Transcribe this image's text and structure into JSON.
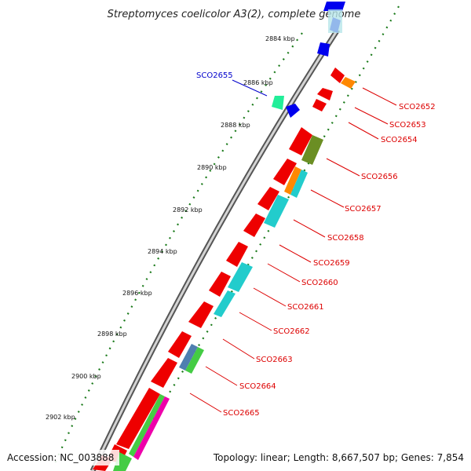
{
  "title": "Streptomyces coelicolor A3(2), complete genome",
  "footer": {
    "accession": "Accession: NC_003888",
    "topology": "Topology: linear; Length: 8,667,507 bp; Genes: 7,854"
  },
  "colors": {
    "backbone": "#7a7a7a",
    "tick": "#1a7a1a",
    "label_red": "#dd0000",
    "label_blue": "#0000cc",
    "gene_red": "#ee0000",
    "gene_blue": "#0000ee",
    "gene_cyan": "#22cccc",
    "gene_orange": "#ff8800",
    "gene_olive": "#6b8e23",
    "gene_teal": "#22ee99"
  },
  "kbp_ticks": [
    "2884 kbp",
    "2886 kbp",
    "2888 kbp",
    "2890 kbp",
    "2892 kbp",
    "2894 kbp",
    "2896 kbp",
    "2898 kbp",
    "2900 kbp",
    "2902 kbp"
  ],
  "gene_labels": {
    "left": [
      "SCO2655"
    ],
    "right": [
      "SCO2652",
      "SCO2653",
      "SCO2654",
      "SCO2656",
      "SCO2657",
      "SCO2658",
      "SCO2659",
      "SCO2660",
      "SCO2661",
      "SCO2662",
      "SCO2663",
      "SCO2664",
      "SCO2665"
    ]
  }
}
